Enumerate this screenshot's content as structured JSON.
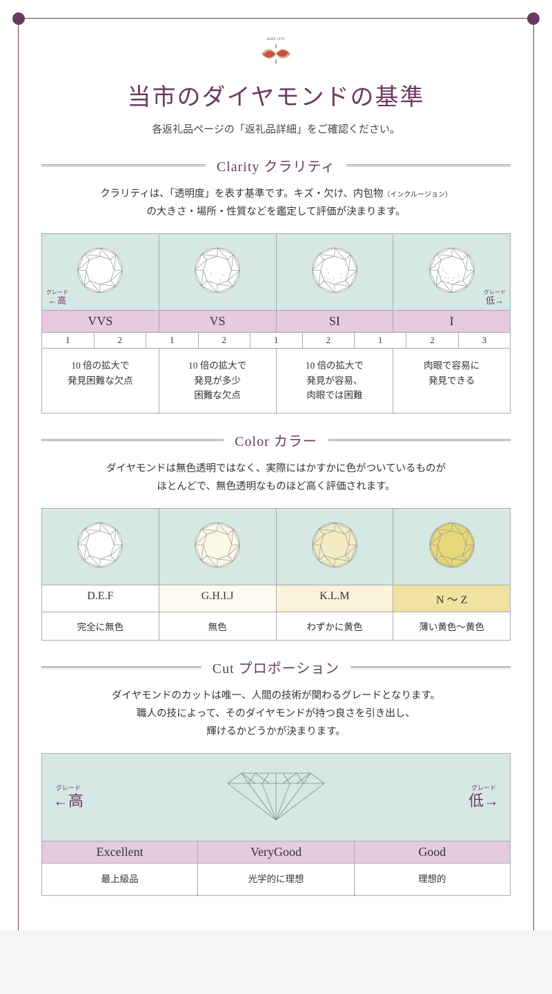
{
  "logo_label": "KOFU CITY",
  "title": "当市のダイヤモンドの基準",
  "subtitle": "各返礼品ページの「返礼品詳細」をご確認ください。",
  "grade_high": "高",
  "grade_low": "低",
  "grade_small": "グレード",
  "arrow_l": "←",
  "arrow_r": "→",
  "colors": {
    "brand": "#6b3960",
    "mint": "#d6e8e3",
    "pink": "#e6cadd",
    "border": "#aaaaaa",
    "cream0": "#ffffff",
    "cream1": "#fcf8e8",
    "cream2": "#f3ebc4",
    "cream3": "#e8d878"
  },
  "clarity": {
    "title": "Clarity クラリティ",
    "desc_1": "クラリティは、「透明度」を表す基準です。キズ・欠け、内包物",
    "desc_note": "（インクルージョン）",
    "desc_2": "の大きさ・場所・性質などを鑑定して評価が決まります。",
    "grades": [
      {
        "code": "VVS",
        "subs": [
          "1",
          "2"
        ],
        "desc": "10 倍の拡大で\n発見困難な欠点"
      },
      {
        "code": "VS",
        "subs": [
          "1",
          "2"
        ],
        "desc": "10 倍の拡大で\n発見が多少\n困難な欠点"
      },
      {
        "code": "SI",
        "subs": [
          "1",
          "2"
        ],
        "desc": "10 倍の拡大で\n発見が容易、\n肉眼では困難"
      },
      {
        "code": "I",
        "subs": [
          "1",
          "2",
          "3"
        ],
        "desc": "肉眼で容易に\n発見できる"
      }
    ]
  },
  "color": {
    "title": "Color カラー",
    "desc": "ダイヤモンドは無色透明ではなく、実際にはかすかに色がついているものが\nほとんどで、無色透明なものほど高く評価されます。",
    "items": [
      {
        "label": "D.E.F",
        "desc": "完全に無色",
        "bg": "#ffffff",
        "fill": "#ffffff"
      },
      {
        "label": "G.H.I.J",
        "desc": "無色",
        "bg": "#fdfbf1",
        "fill": "#fcf8e8"
      },
      {
        "label": "K.L.M",
        "desc": "わずかに黄色",
        "bg": "#faf3da",
        "fill": "#f3ebc4"
      },
      {
        "label": "N ～ Z",
        "desc": "薄い黄色～黄色",
        "bg": "#f0e2a0",
        "fill": "#e8d878"
      }
    ]
  },
  "cut": {
    "title": "Cut プロポーション",
    "desc": "ダイヤモンドのカットは唯一、人間の技術が関わるグレードとなります。\n職人の技によって、そのダイヤモンドが持つ良さを引き出し、\n輝けるかどうかが決まります。",
    "items": [
      {
        "label": "Excellent",
        "desc": "最上級品"
      },
      {
        "label": "VeryGood",
        "desc": "光学的に理想"
      },
      {
        "label": "Good",
        "desc": "理想的"
      }
    ]
  }
}
